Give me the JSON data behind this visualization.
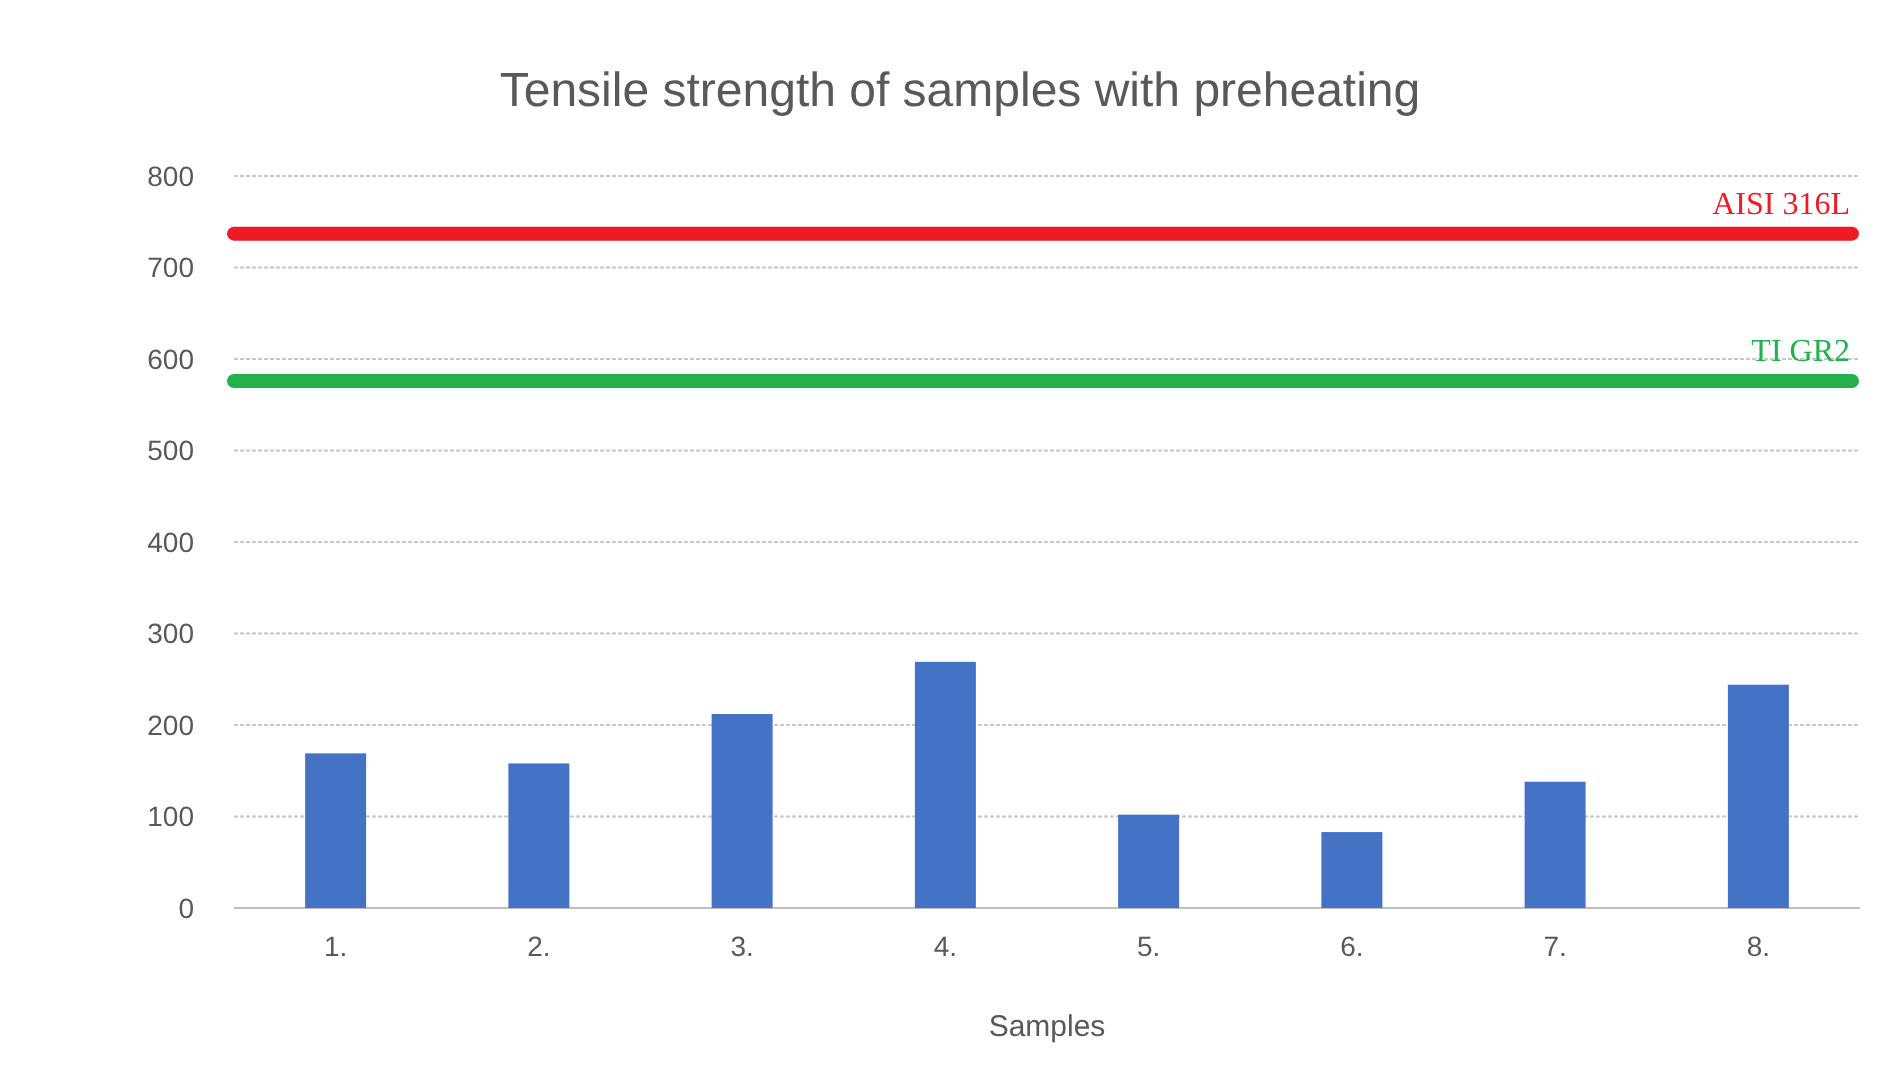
{
  "chart_data": {
    "type": "bar",
    "title": "Tensile strength of samples with preheating",
    "xlabel": "Samples",
    "categories": [
      "1.",
      "2.",
      "3.",
      "4.",
      "5.",
      "6.",
      "7.",
      "8."
    ],
    "values": [
      169,
      158,
      212,
      269,
      102,
      83,
      138,
      244
    ],
    "color": "#4472c4",
    "ylim": [
      0,
      800
    ],
    "yticks": [
      0,
      100,
      200,
      300,
      400,
      500,
      600,
      700,
      800
    ],
    "grid": "y",
    "ref_lines": [
      {
        "axis": "y",
        "value": 737,
        "label": "AISI 316L",
        "color": "#ed1c24"
      },
      {
        "axis": "y",
        "value": 576,
        "label": "TI GR2",
        "color": "#22b14c"
      }
    ]
  }
}
